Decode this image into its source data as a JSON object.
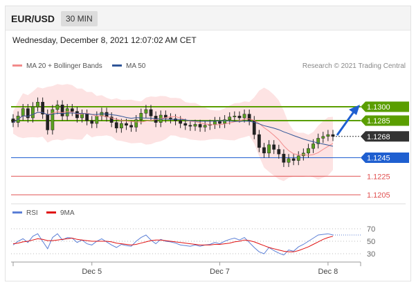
{
  "header": {
    "symbol": "EUR/USD",
    "timeframe": "30 MIN"
  },
  "datetime": "Wednesday, December 8, 2021 12:07:02 AM CET",
  "source": "Research © 2021 Trading Central",
  "colors": {
    "ma20": "#f28b8b",
    "ma50": "#2f5597",
    "resistance": "#5a9e00",
    "support_blue": "#1f5fd0",
    "support_red": "#e05050",
    "rsi": "#5b7fd6",
    "rsi_ma": "#e01010",
    "current": "#333333"
  },
  "chart_data": [
    {
      "type": "candlestick",
      "title": "",
      "legend": [
        {
          "name": "MA 20 + Bollinger Bands",
          "color": "#f28b8b"
        },
        {
          "name": "MA 50",
          "color": "#2f5597"
        }
      ],
      "legend_position": "top-left",
      "ylim": [
        1.1197,
        1.1338
      ],
      "levels": [
        {
          "value": 1.13,
          "label": "1.1300",
          "kind": "resistance"
        },
        {
          "value": 1.1285,
          "label": "1.1285",
          "kind": "resistance"
        },
        {
          "value": 1.1268,
          "label": "1.1268",
          "kind": "current"
        },
        {
          "value": 1.1245,
          "label": "1.1245",
          "kind": "support_blue"
        },
        {
          "value": 1.1225,
          "label": "1.1225",
          "kind": "support_red"
        },
        {
          "value": 1.1205,
          "label": "1.1205",
          "kind": "support_red"
        }
      ],
      "price_path": [
        1.1283,
        1.129,
        1.1298,
        1.1288,
        1.13,
        1.1305,
        1.1292,
        1.1275,
        1.1297,
        1.1302,
        1.129,
        1.1298,
        1.1295,
        1.1288,
        1.1292,
        1.1285,
        1.1282,
        1.129,
        1.1294,
        1.1289,
        1.1283,
        1.1277,
        1.1282,
        1.128,
        1.1278,
        1.1286,
        1.1293,
        1.1297,
        1.129,
        1.1283,
        1.1291,
        1.1288,
        1.1287,
        1.1285,
        1.1282,
        1.128,
        1.1279,
        1.1281,
        1.1278,
        1.128,
        1.1281,
        1.1284,
        1.1282,
        1.1286,
        1.1289,
        1.129,
        1.1288,
        1.1292,
        1.1285,
        1.127,
        1.1256,
        1.125,
        1.1259,
        1.1254,
        1.1249,
        1.124,
        1.1244,
        1.1242,
        1.1247,
        1.125,
        1.1255,
        1.126,
        1.1266,
        1.1268,
        1.127,
        1.1268
      ],
      "annotation": "projected move up toward 1.1300",
      "x_ticks": [
        {
          "label": "Dec 5",
          "index": 16
        },
        {
          "label": "Dec 7",
          "index": 42
        },
        {
          "label": "Dec 8",
          "index": 64
        }
      ]
    },
    {
      "type": "line",
      "title": "",
      "legend": [
        {
          "name": "RSI",
          "color": "#5b7fd6"
        },
        {
          "name": "9MA",
          "color": "#e01010"
        }
      ],
      "ylim": [
        20,
        80
      ],
      "y_ticks": [
        70,
        50,
        30
      ],
      "series": [
        {
          "name": "RSI",
          "values": [
            44,
            50,
            54,
            48,
            58,
            62,
            50,
            38,
            56,
            62,
            52,
            56,
            55,
            48,
            52,
            46,
            44,
            50,
            54,
            49,
            44,
            40,
            45,
            43,
            42,
            50,
            56,
            60,
            52,
            46,
            53,
            50,
            49,
            47,
            44,
            43,
            42,
            44,
            42,
            44,
            45,
            48,
            46,
            50,
            53,
            55,
            52,
            56,
            48,
            40,
            33,
            30,
            40,
            35,
            31,
            28,
            36,
            34,
            41,
            45,
            50,
            55,
            60,
            61,
            62,
            60
          ]
        },
        {
          "name": "9MA",
          "values": [
            46,
            47,
            49,
            50,
            52,
            54,
            53,
            51,
            51,
            52,
            53,
            54,
            55,
            53,
            52,
            51,
            50,
            50,
            50,
            50,
            49,
            47,
            46,
            45,
            44,
            45,
            47,
            49,
            51,
            52,
            52,
            51,
            50,
            49,
            48,
            47,
            46,
            45,
            44,
            44,
            44,
            45,
            45,
            46,
            47,
            49,
            50,
            52,
            51,
            49,
            46,
            43,
            40,
            38,
            36,
            34,
            33,
            33,
            35,
            38,
            41,
            45,
            49,
            53,
            56,
            58
          ]
        }
      ],
      "x_ticks": [
        {
          "label": "Dec 5",
          "index": 16
        },
        {
          "label": "Dec 7",
          "index": 42
        },
        {
          "label": "Dec 8",
          "index": 64
        }
      ]
    }
  ]
}
